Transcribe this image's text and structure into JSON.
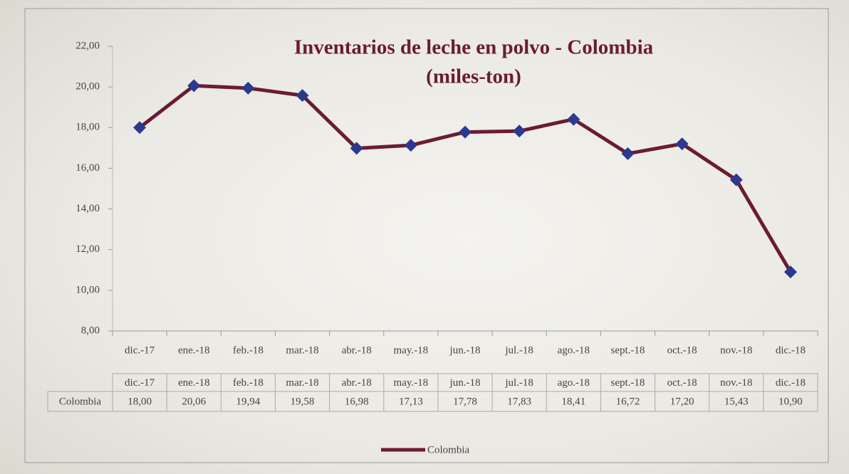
{
  "chart_data": {
    "type": "line",
    "title": "Inventarios de leche en polvo - Colombia",
    "subtitle": "(miles-ton)",
    "categories": [
      "dic.-17",
      "ene.-18",
      "feb.-18",
      "mar.-18",
      "abr.-18",
      "may.-18",
      "jun.-18",
      "jul.-18",
      "ago.-18",
      "sept.-18",
      "oct.-18",
      "nov.-18",
      "dic.-18"
    ],
    "series": [
      {
        "name": "Colombia",
        "color": "#6b1c32",
        "marker_color": "#2b3990",
        "values": [
          18.0,
          20.06,
          19.94,
          19.58,
          16.98,
          17.13,
          17.78,
          17.83,
          18.41,
          16.72,
          17.2,
          15.43,
          10.9
        ],
        "value_labels": [
          "18,00",
          "20,06",
          "19,94",
          "19,58",
          "16,98",
          "17,13",
          "17,78",
          "17,83",
          "18,41",
          "16,72",
          "17,20",
          "15,43",
          "10,90"
        ]
      }
    ],
    "ylim": [
      8,
      22
    ],
    "yticks": [
      {
        "value": 8,
        "label": "8,00"
      },
      {
        "value": 10,
        "label": "10,00"
      },
      {
        "value": 12,
        "label": "12,00"
      },
      {
        "value": 14,
        "label": "14,00"
      },
      {
        "value": 16,
        "label": "16,00"
      },
      {
        "value": 18,
        "label": "18,00"
      },
      {
        "value": 20,
        "label": "20,00"
      },
      {
        "value": 22,
        "label": "22,00"
      }
    ],
    "grid": false,
    "legend": "bottom"
  }
}
